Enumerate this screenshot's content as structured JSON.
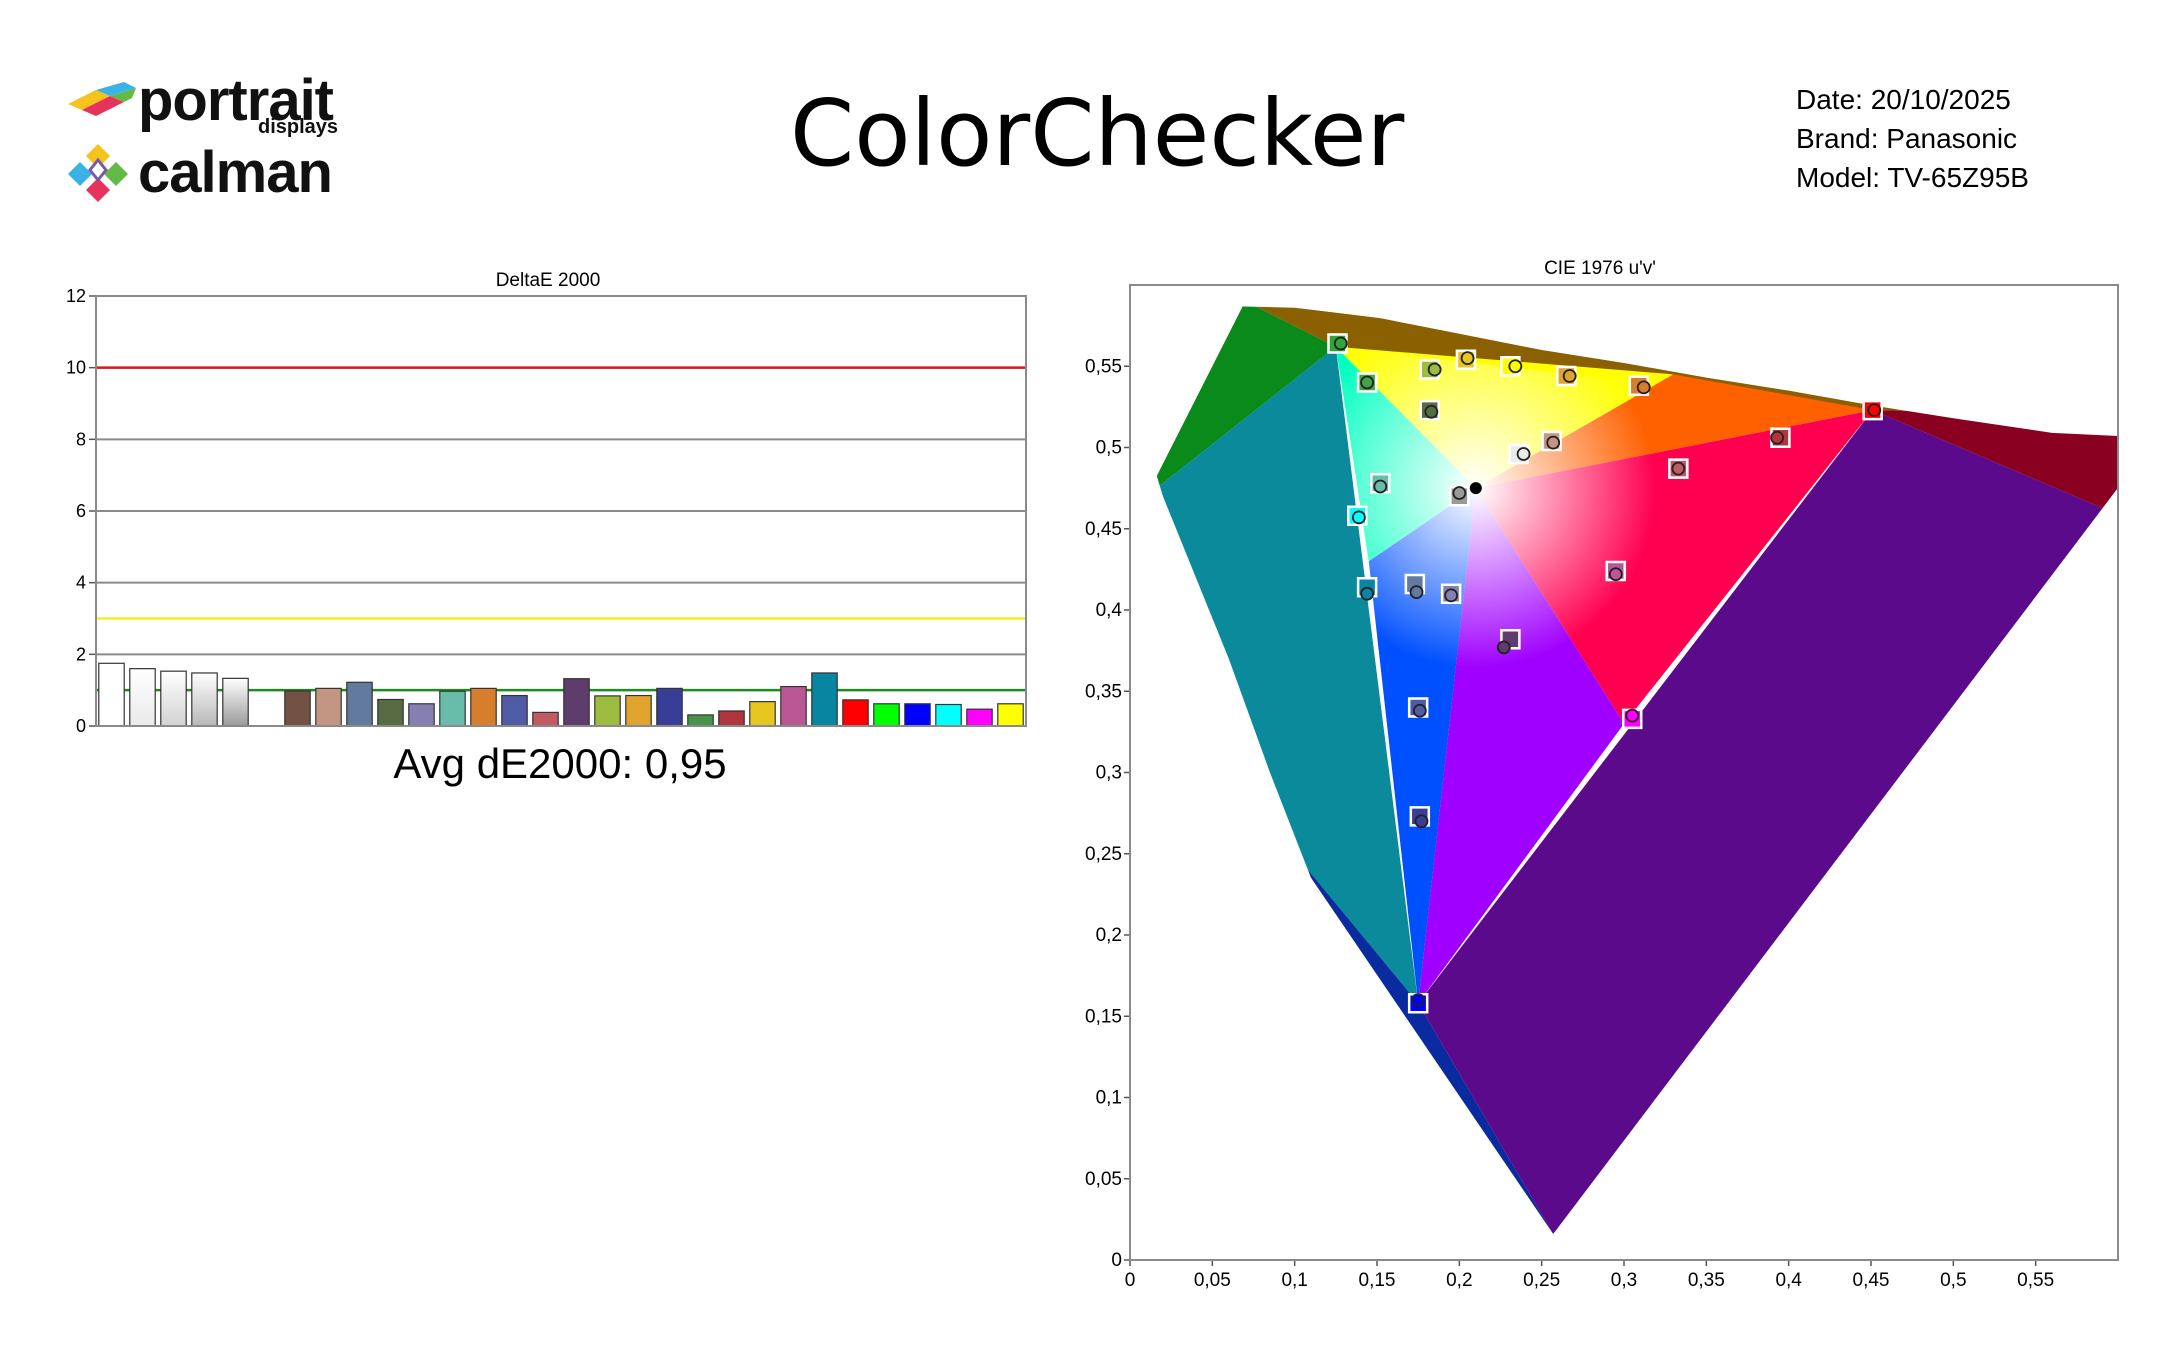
{
  "header": {
    "logo_top": "portrait",
    "logo_top_sub": "displays",
    "logo_bottom": "calman",
    "title": "ColorChecker",
    "date_line": "Date: 20/10/2025",
    "brand_line": "Brand: Panasonic",
    "model_line": "Model: TV-65Z95B"
  },
  "chart_data": [
    {
      "type": "bar",
      "title": "DeltaE 2000",
      "xlabel": "",
      "ylabel": "",
      "ylim": [
        0,
        12
      ],
      "yticks": [
        0,
        2,
        4,
        6,
        8,
        10,
        12
      ],
      "grid": true,
      "reference_lines": [
        {
          "value": 10,
          "color": "#d71920"
        },
        {
          "value": 3,
          "color": "#f2ef29"
        },
        {
          "value": 1,
          "color": "#1f8a1f"
        }
      ],
      "values": [
        1.75,
        1.6,
        1.53,
        1.48,
        1.33,
        null,
        0.98,
        1.05,
        1.22,
        0.74,
        0.62,
        0.97,
        1.05,
        0.85,
        0.38,
        1.32,
        0.84,
        0.85,
        1.05,
        0.31,
        0.42,
        0.68,
        1.1,
        1.48,
        0.73,
        0.62,
        0.62,
        0.6,
        0.47,
        0.62
      ],
      "bar_colors": [
        "#ffffff",
        "#eaeaea",
        "#d2d2d2",
        "#b7b7b7",
        "#9a9a9a",
        "",
        "#735244",
        "#c29682",
        "#627a9d",
        "#576c43",
        "#8580b1",
        "#67bdaa",
        "#d67e2c",
        "#505ba6",
        "#c15a63",
        "#5e3c6c",
        "#9dbc40",
        "#e0a32e",
        "#383d96",
        "#469449",
        "#af363c",
        "#e7c71f",
        "#bb5695",
        "#0885a1",
        "#ff0000",
        "#00ff00",
        "#0000ff",
        "#00ffff",
        "#ff00ff",
        "#ffff00"
      ],
      "summary": "Avg dE2000: 0,95"
    },
    {
      "type": "scatter",
      "title": "CIE 1976 u'v'",
      "xlabel": "",
      "ylabel": "",
      "xlim": [
        0,
        0.6
      ],
      "ylim": [
        0,
        0.6
      ],
      "xticks": [
        "0",
        "0,05",
        "0,1",
        "0,15",
        "0,2",
        "0,25",
        "0,3",
        "0,35",
        "0,4",
        "0,45",
        "0,5",
        "0,55"
      ],
      "yticks": [
        "0",
        "0,05",
        "0,1",
        "0,15",
        "0,2",
        "0,25",
        "0,3",
        "0,35",
        "0,4",
        "0,45",
        "0,5",
        "0,55"
      ],
      "gamut_triangle": {
        "red": [
          0.451,
          0.523
        ],
        "green": [
          0.125,
          0.562
        ],
        "blue": [
          0.175,
          0.158
        ]
      },
      "white_point": [
        0.21,
        0.475
      ],
      "series": [
        {
          "points": [
            {
              "tu": 0.126,
              "tv": 0.564,
              "mu": 0.128,
              "mv": 0.564,
              "color": "#2fa53a"
            },
            {
              "tu": 0.144,
              "tv": 0.54,
              "mu": 0.144,
              "mv": 0.54,
              "color": "#44a548"
            },
            {
              "tu": 0.182,
              "tv": 0.548,
              "mu": 0.185,
              "mv": 0.548,
              "color": "#9dbc40"
            },
            {
              "tu": 0.204,
              "tv": 0.554,
              "mu": 0.205,
              "mv": 0.555,
              "color": "#e7c71f"
            },
            {
              "tu": 0.231,
              "tv": 0.55,
              "mu": 0.234,
              "mv": 0.55,
              "color": "#ffff00"
            },
            {
              "tu": 0.265,
              "tv": 0.544,
              "mu": 0.267,
              "mv": 0.544,
              "color": "#e0a32e"
            },
            {
              "tu": 0.309,
              "tv": 0.538,
              "mu": 0.312,
              "mv": 0.537,
              "color": "#d67e2c"
            },
            {
              "tu": 0.451,
              "tv": 0.523,
              "mu": 0.452,
              "mv": 0.523,
              "color": "#ff0000"
            },
            {
              "tu": 0.182,
              "tv": 0.523,
              "mu": 0.183,
              "mv": 0.522,
              "color": "#576c43"
            },
            {
              "tu": 0.256,
              "tv": 0.504,
              "mu": 0.257,
              "mv": 0.503,
              "color": "#c29682"
            },
            {
              "tu": 0.236,
              "tv": 0.496,
              "mu": 0.239,
              "mv": 0.496,
              "color": "#eaeaea"
            },
            {
              "tu": 0.395,
              "tv": 0.506,
              "mu": 0.393,
              "mv": 0.506,
              "color": "#af363c"
            },
            {
              "tu": 0.333,
              "tv": 0.487,
              "mu": 0.333,
              "mv": 0.487,
              "color": "#c15a63"
            },
            {
              "tu": 0.152,
              "tv": 0.478,
              "mu": 0.152,
              "mv": 0.476,
              "color": "#67bdaa"
            },
            {
              "tu": 0.2,
              "tv": 0.47,
              "mu": 0.2,
              "mv": 0.472,
              "color": "#9a9a9a"
            },
            {
              "tu": 0.138,
              "tv": 0.458,
              "mu": 0.139,
              "mv": 0.457,
              "color": "#00ffff"
            },
            {
              "tu": 0.144,
              "tv": 0.414,
              "mu": 0.144,
              "mv": 0.41,
              "color": "#0885a1"
            },
            {
              "tu": 0.173,
              "tv": 0.416,
              "mu": 0.174,
              "mv": 0.411,
              "color": "#627a9d"
            },
            {
              "tu": 0.195,
              "tv": 0.41,
              "mu": 0.195,
              "mv": 0.409,
              "color": "#8580b1"
            },
            {
              "tu": 0.295,
              "tv": 0.424,
              "mu": 0.295,
              "mv": 0.422,
              "color": "#bb5695"
            },
            {
              "tu": 0.231,
              "tv": 0.382,
              "mu": 0.227,
              "mv": 0.377,
              "color": "#5e3c6c"
            },
            {
              "tu": 0.175,
              "tv": 0.34,
              "mu": 0.176,
              "mv": 0.338,
              "color": "#505ba6"
            },
            {
              "tu": 0.305,
              "tv": 0.333,
              "mu": 0.305,
              "mv": 0.335,
              "color": "#ff00ff"
            },
            {
              "tu": 0.176,
              "tv": 0.273,
              "mu": 0.177,
              "mv": 0.27,
              "color": "#383d96"
            },
            {
              "tu": 0.175,
              "tv": 0.158,
              "mu": 0.175,
              "mv": 0.16,
              "color": "#0000ff"
            }
          ]
        }
      ]
    }
  ]
}
